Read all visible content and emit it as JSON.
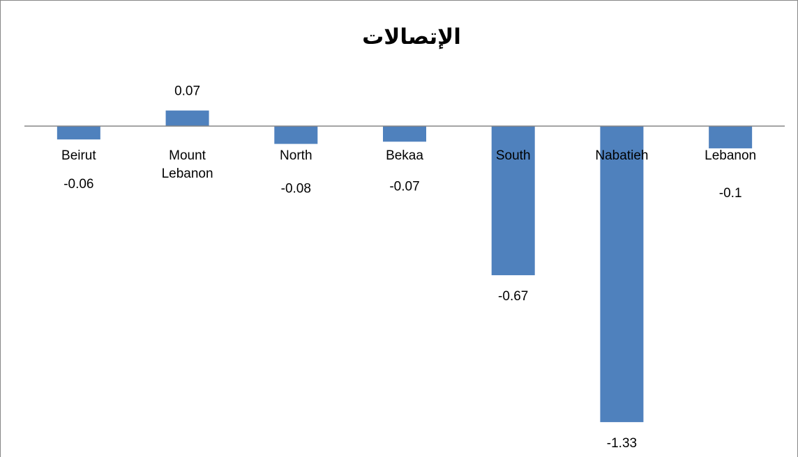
{
  "chart_data": {
    "type": "bar",
    "title": "الإتصالات",
    "categories": [
      "Beirut",
      "Mount Lebanon",
      "North",
      "Bekaa",
      "South",
      "Nabatieh",
      "Lebanon"
    ],
    "values": [
      -0.06,
      0.07,
      -0.08,
      -0.07,
      -0.67,
      -1.33,
      -0.1
    ],
    "color": "#4f81bd"
  }
}
